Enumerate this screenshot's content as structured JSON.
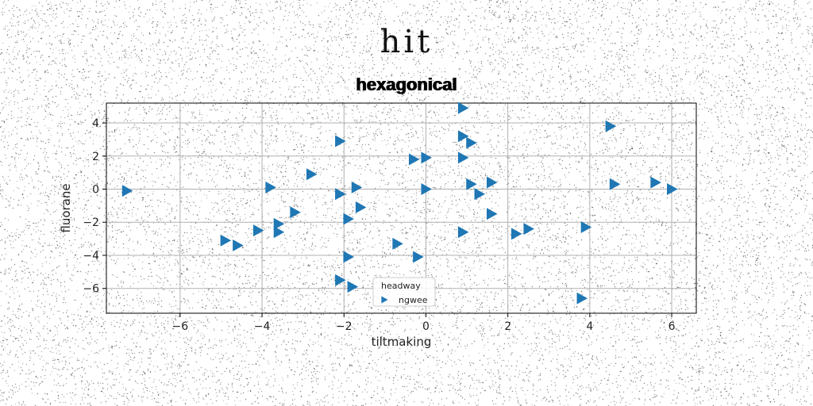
{
  "chart_data": {
    "type": "scatter",
    "suptitle": "hit",
    "title": "hexagonical",
    "xlabel": "tiltmaking",
    "ylabel": "fluorane",
    "xlim": [
      -7.8,
      6.6
    ],
    "ylim": [
      -7.5,
      5.2
    ],
    "xticks": [
      -6,
      -4,
      -2,
      0,
      2,
      4,
      6
    ],
    "yticks": [
      -6,
      -4,
      -2,
      0,
      2,
      4
    ],
    "xtick_labels": [
      "−6",
      "−4",
      "−2",
      "0",
      "2",
      "4",
      "6"
    ],
    "ytick_labels": [
      "−6",
      "−4",
      "−2",
      "0",
      "2",
      "4"
    ],
    "grid": true,
    "marker": "triangle-right",
    "legend": {
      "title": "headway",
      "placement": "lower-center"
    },
    "series": [
      {
        "name": "ngwee",
        "color": "#1f77b4",
        "points": [
          [
            -7.3,
            -0.1
          ],
          [
            -3.8,
            0.1
          ],
          [
            -2.8,
            0.9
          ],
          [
            -2.1,
            2.9
          ],
          [
            -2.1,
            -0.3
          ],
          [
            -1.7,
            0.1
          ],
          [
            -1.6,
            -1.1
          ],
          [
            -1.9,
            -1.8
          ],
          [
            -3.2,
            -1.4
          ],
          [
            -3.6,
            -2.1
          ],
          [
            -3.6,
            -2.6
          ],
          [
            -4.1,
            -2.5
          ],
          [
            -4.9,
            -3.1
          ],
          [
            -4.6,
            -3.4
          ],
          [
            -1.9,
            -4.1
          ],
          [
            -0.7,
            -3.3
          ],
          [
            -0.2,
            -4.1
          ],
          [
            -2.1,
            -5.5
          ],
          [
            -1.8,
            -5.9
          ],
          [
            -0.3,
            1.8
          ],
          [
            0.0,
            1.9
          ],
          [
            0.0,
            0.0
          ],
          [
            0.9,
            4.9
          ],
          [
            0.9,
            3.2
          ],
          [
            1.1,
            2.8
          ],
          [
            0.9,
            1.9
          ],
          [
            1.1,
            0.3
          ],
          [
            1.3,
            -0.3
          ],
          [
            1.6,
            0.4
          ],
          [
            1.6,
            -1.5
          ],
          [
            0.9,
            -2.6
          ],
          [
            2.2,
            -2.7
          ],
          [
            2.5,
            -2.4
          ],
          [
            3.9,
            -2.3
          ],
          [
            3.8,
            -6.6
          ],
          [
            4.5,
            3.8
          ],
          [
            4.6,
            0.3
          ],
          [
            5.6,
            0.4
          ],
          [
            6.0,
            0.0
          ]
        ]
      }
    ]
  }
}
